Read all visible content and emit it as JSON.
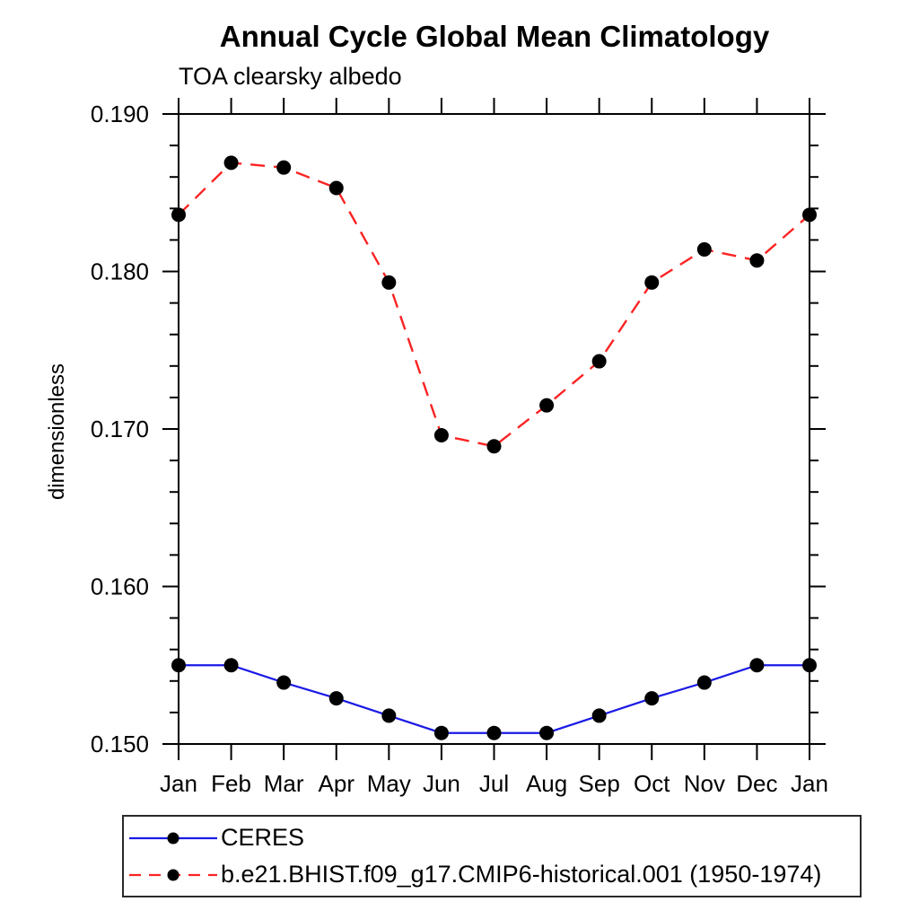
{
  "chart_data": {
    "type": "line",
    "title": "Annual Cycle Global Mean Climatology",
    "subtitle": "TOA clearsky albedo",
    "xlabel": "",
    "ylabel": "dimensionless",
    "x_categories": [
      "Jan",
      "Feb",
      "Mar",
      "Apr",
      "May",
      "Jun",
      "Jul",
      "Aug",
      "Sep",
      "Oct",
      "Nov",
      "Dec",
      "Jan"
    ],
    "ylim": [
      0.15,
      0.19
    ],
    "yticks": [
      {
        "value": 0.15,
        "label": "0.150"
      },
      {
        "value": 0.16,
        "label": "0.160"
      },
      {
        "value": 0.17,
        "label": "0.170"
      },
      {
        "value": 0.18,
        "label": "0.180"
      },
      {
        "value": 0.19,
        "label": "0.190"
      }
    ],
    "ytick_minor_step": 0.002,
    "grid": false,
    "axis_color": "#000000",
    "legend_position": "below-plot-left",
    "series": [
      {
        "name": "CERES",
        "line_color": "#1a1ae6",
        "line_style": "solid",
        "marker": "filled-circle",
        "marker_color": "#000000",
        "values": [
          0.155,
          0.155,
          0.1539,
          0.1529,
          0.1518,
          0.1507,
          0.1507,
          0.1507,
          0.1518,
          0.1529,
          0.1539,
          0.155,
          0.155
        ]
      },
      {
        "name": "b.e21.BHIST.f09_g17.CMIP6-historical.001 (1950-1974)",
        "line_color": "#fb2323",
        "line_style": "dashed",
        "marker": "filled-circle",
        "marker_color": "#000000",
        "values": [
          0.1836,
          0.1869,
          0.1866,
          0.1853,
          0.1793,
          0.1696,
          0.1689,
          0.1715,
          0.1743,
          0.1793,
          0.1814,
          0.1807,
          0.1836
        ]
      }
    ]
  }
}
